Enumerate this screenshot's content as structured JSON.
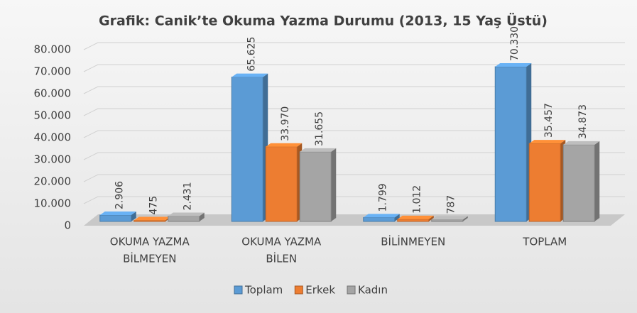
{
  "chart_data": {
    "type": "bar3d",
    "title": "Grafik: Canik’te Okuma Yazma Durumu (2013, 15 Yaş Üstü)",
    "categories": [
      [
        "OKUMA YAZMA",
        "BİLMEYEN"
      ],
      [
        "OKUMA YAZMA",
        "BİLEN"
      ],
      [
        "BİLİNMEYEN"
      ],
      [
        "TOPLAM"
      ]
    ],
    "series": [
      {
        "name": "Toplam",
        "color": "#5b9bd5",
        "values": [
          2906,
          65625,
          1799,
          70330
        ],
        "value_labels": [
          "2.906",
          "65.625",
          "1.799",
          "70.330"
        ]
      },
      {
        "name": "Erkek",
        "color": "#ed7d31",
        "values": [
          475,
          33970,
          1012,
          35457
        ],
        "value_labels": [
          "475",
          "33.970",
          "1.012",
          "35.457"
        ]
      },
      {
        "name": "Kadın",
        "color": "#a5a5a5",
        "values": [
          2431,
          31655,
          787,
          34873
        ],
        "value_labels": [
          "2.431",
          "31.655",
          "787",
          "34.873"
        ]
      }
    ],
    "ylim": [
      0,
      80000
    ],
    "yticks": [
      0,
      {
        "value": 10000,
        "label": "10.000"
      },
      {
        "value": 20000,
        "label": "20.000"
      },
      {
        "value": 30000,
        "label": "30.000"
      },
      {
        "value": 40000,
        "label": "40.000"
      },
      {
        "value": 50000,
        "label": "50.000"
      },
      {
        "value": 60000,
        "label": "60.000"
      },
      {
        "value": 70000,
        "label": "70.000"
      },
      {
        "value": 80000,
        "label": "80.000"
      }
    ],
    "grid": true,
    "legend": "bottom"
  }
}
